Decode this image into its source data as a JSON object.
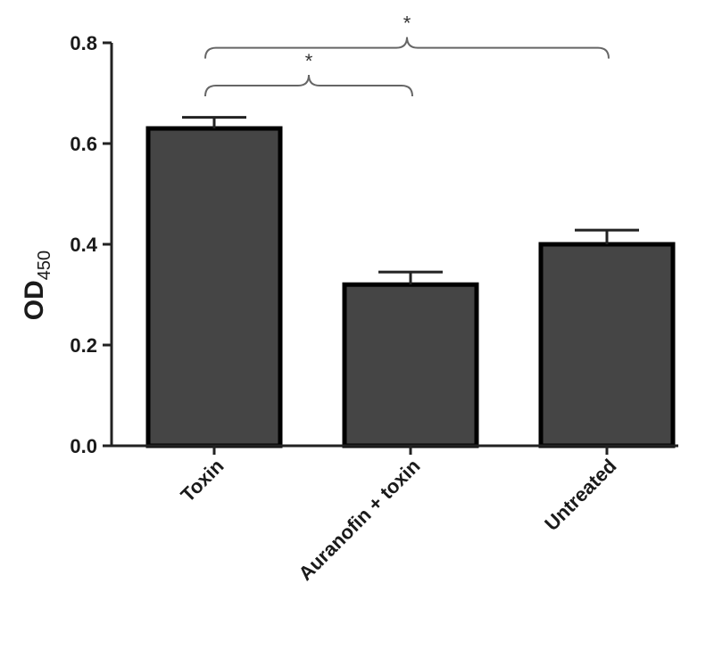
{
  "chart_data": {
    "type": "bar",
    "ylabel_main": "OD",
    "ylabel_sub": "450",
    "xlabel": "",
    "ylim": [
      0,
      0.8
    ],
    "yticks": [
      "0.0",
      "0.2",
      "0.4",
      "0.6",
      "0.8"
    ],
    "categories": [
      "Toxin",
      "Auranofin + toxin",
      "Untreated"
    ],
    "values": [
      0.63,
      0.32,
      0.4
    ],
    "errors": [
      0.022,
      0.025,
      0.028
    ],
    "bar_color": "#454545",
    "significance": [
      {
        "from": 0,
        "to": 1,
        "label": "*"
      },
      {
        "from": 0,
        "to": 2,
        "label": "*"
      }
    ]
  }
}
